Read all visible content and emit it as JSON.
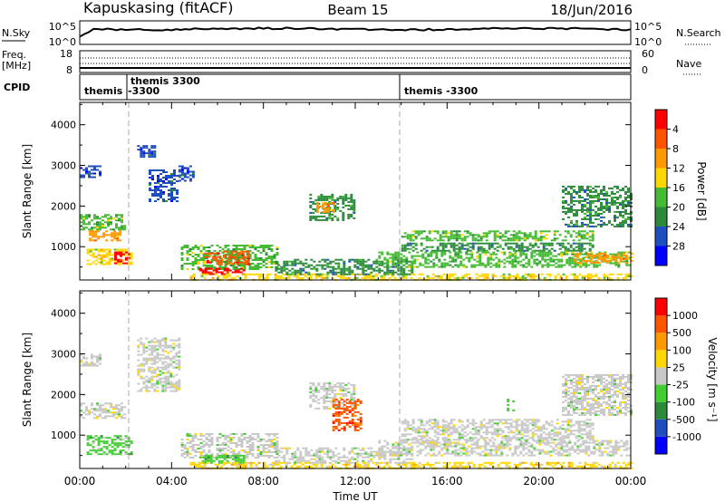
{
  "header": {
    "station": "Kapuskasing (fitACF)",
    "beam": "Beam 15",
    "date": "18/Jun/2016"
  },
  "top_panels": {
    "nsky_label": "N.Sky",
    "nsky_ticks": [
      "10^5",
      "10^0"
    ],
    "nsearch_label": "N.Search",
    "freq_label": "Freq.",
    "freq_unit": "[MHz]",
    "freq_ticks": [
      "18",
      "8"
    ],
    "nave_ticks": [
      "60",
      "0"
    ],
    "nave_label": "Nave",
    "cpid_label": "CPID",
    "cpid_segments": [
      {
        "line1": "themis",
        "line2": ""
      },
      {
        "line1": "themis  3300",
        "line2": "-3300"
      },
      {
        "line1": "themis  -3300",
        "line2": ""
      }
    ]
  },
  "chart_data": [
    {
      "type": "heatmap",
      "title": "",
      "xlabel": "Time UT",
      "ylabel": "Slant Range [km]",
      "x_range_hours": [
        0,
        24
      ],
      "y_range_km": [
        180,
        4550
      ],
      "x_ticks": [
        "00:00",
        "04:00",
        "08:00",
        "12:00",
        "16:00",
        "20:00",
        "00:00"
      ],
      "y_ticks": [
        "1000",
        "2000",
        "3000",
        "4000"
      ],
      "y_tick_values": [
        1000,
        2000,
        3000,
        4000
      ],
      "colorbar": {
        "label": "Power [dB]",
        "range": [
          0,
          32
        ],
        "ticks": [
          "4",
          "8",
          "12",
          "16",
          "20",
          "24",
          "28"
        ],
        "colors": [
          "#0000ff",
          "#1f4fbf",
          "#2a8a3a",
          "#44bb33",
          "#ffd700",
          "#ff9900",
          "#ff5500",
          "#ff0000"
        ]
      },
      "regions": [
        {
          "t0": 0.0,
          "t1": 1.9,
          "r0": 1400,
          "r1": 1800,
          "level": 3
        },
        {
          "t0": 0.4,
          "t1": 1.8,
          "r0": 1150,
          "r1": 1400,
          "level": 5
        },
        {
          "t0": 0.0,
          "t1": 0.9,
          "r0": 2700,
          "r1": 3000,
          "level": 1
        },
        {
          "t0": 0.3,
          "t1": 2.3,
          "r0": 550,
          "r1": 950,
          "level": 4
        },
        {
          "t0": 1.5,
          "t1": 2.2,
          "r0": 600,
          "r1": 880,
          "level": 7
        },
        {
          "t0": 2.5,
          "t1": 3.3,
          "r0": 3200,
          "r1": 3500,
          "level": 1
        },
        {
          "t0": 3.0,
          "t1": 4.3,
          "r0": 2100,
          "r1": 2900,
          "level": 1
        },
        {
          "t0": 4.3,
          "t1": 5.0,
          "r0": 2600,
          "r1": 3000,
          "level": 1
        },
        {
          "t0": 4.4,
          "t1": 8.6,
          "r0": 450,
          "r1": 1050,
          "level": 3
        },
        {
          "t0": 5.4,
          "t1": 7.4,
          "r0": 550,
          "r1": 900,
          "level": 6
        },
        {
          "t0": 5.2,
          "t1": 7.2,
          "r0": 320,
          "r1": 480,
          "level": 7
        },
        {
          "t0": 4.8,
          "t1": 24.0,
          "r0": 200,
          "r1": 340,
          "level": 4
        },
        {
          "t0": 8.5,
          "t1": 14.5,
          "r0": 340,
          "r1": 700,
          "level": 2
        },
        {
          "t0": 10.0,
          "t1": 12.0,
          "r0": 1650,
          "r1": 2300,
          "level": 2
        },
        {
          "t0": 10.3,
          "t1": 11.1,
          "r0": 1850,
          "r1": 2100,
          "level": 5
        },
        {
          "t0": 14.0,
          "t1": 22.4,
          "r0": 1150,
          "r1": 1400,
          "level": 3
        },
        {
          "t0": 14.0,
          "t1": 22.4,
          "r0": 880,
          "r1": 1100,
          "level": 2
        },
        {
          "t0": 13.0,
          "t1": 24.0,
          "r0": 500,
          "r1": 880,
          "level": 3
        },
        {
          "t0": 21.0,
          "t1": 24.0,
          "r0": 1500,
          "r1": 2500,
          "level": 2
        },
        {
          "t0": 21.5,
          "t1": 24.0,
          "r0": 600,
          "r1": 850,
          "level": 5
        }
      ]
    },
    {
      "type": "heatmap",
      "title": "",
      "xlabel": "Time UT",
      "ylabel": "Slant Range [km]",
      "x_range_hours": [
        0,
        24
      ],
      "y_range_km": [
        180,
        4550
      ],
      "x_ticks": [
        "00:00",
        "04:00",
        "08:00",
        "12:00",
        "16:00",
        "20:00",
        "00:00"
      ],
      "y_ticks": [
        "1000",
        "2000",
        "3000",
        "4000"
      ],
      "y_tick_values": [
        1000,
        2000,
        3000,
        4000
      ],
      "colorbar": {
        "label": "Velocity  [m s⁻¹]",
        "ticks": [
          "1000",
          "500",
          "100",
          "25",
          "-25",
          "-100",
          "-500",
          "-1000"
        ],
        "colors": [
          "#0000ff",
          "#1f4fbf",
          "#2a8a3a",
          "#44cc33",
          "#c8c8c8",
          "#ffd700",
          "#ff9900",
          "#ff5500",
          "#ff0000"
        ]
      },
      "regions": [
        {
          "t0": 0.0,
          "t1": 1.9,
          "r0": 1400,
          "r1": 1800,
          "level": 4
        },
        {
          "t0": 0.0,
          "t1": 0.9,
          "r0": 2700,
          "r1": 3000,
          "level": 4
        },
        {
          "t0": 0.3,
          "t1": 2.3,
          "r0": 550,
          "r1": 1000,
          "level": 3
        },
        {
          "t0": 2.5,
          "t1": 4.3,
          "r0": 2100,
          "r1": 3400,
          "level": 4
        },
        {
          "t0": 4.4,
          "t1": 8.6,
          "r0": 450,
          "r1": 1050,
          "level": 4
        },
        {
          "t0": 5.2,
          "t1": 7.2,
          "r0": 320,
          "r1": 520,
          "level": 3
        },
        {
          "t0": 4.8,
          "t1": 24.0,
          "r0": 200,
          "r1": 340,
          "level": 5
        },
        {
          "t0": 8.5,
          "t1": 14.5,
          "r0": 340,
          "r1": 700,
          "level": 4
        },
        {
          "t0": 10.0,
          "t1": 12.0,
          "r0": 1650,
          "r1": 2300,
          "level": 4
        },
        {
          "t0": 11.0,
          "t1": 12.3,
          "r0": 1100,
          "r1": 1900,
          "level": 7
        },
        {
          "t0": 14.0,
          "t1": 22.4,
          "r0": 880,
          "r1": 1400,
          "level": 4
        },
        {
          "t0": 13.0,
          "t1": 24.0,
          "r0": 500,
          "r1": 880,
          "level": 4
        },
        {
          "t0": 21.0,
          "t1": 24.0,
          "r0": 1500,
          "r1": 2500,
          "level": 4
        },
        {
          "t0": 18.6,
          "t1": 18.9,
          "r0": 1600,
          "r1": 1900,
          "level": 3
        }
      ]
    }
  ]
}
